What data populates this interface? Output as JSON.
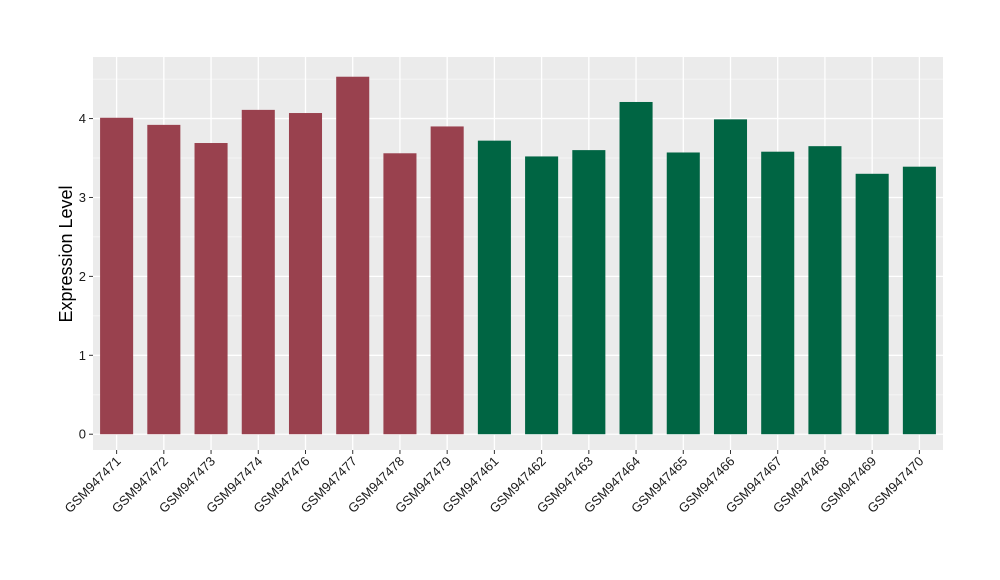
{
  "chart_data": {
    "type": "bar",
    "title": "",
    "xlabel": "",
    "ylabel": "Expression Level",
    "ylim": [
      -0.2,
      4.78
    ],
    "yticks": [
      0,
      1,
      2,
      3,
      4
    ],
    "grid": true,
    "legend": "none",
    "categories": [
      "GSM947471",
      "GSM947472",
      "GSM947473",
      "GSM947474",
      "GSM947476",
      "GSM947477",
      "GSM947478",
      "GSM947479",
      "GSM947461",
      "GSM947462",
      "GSM947463",
      "GSM947464",
      "GSM947465",
      "GSM947466",
      "GSM947467",
      "GSM947468",
      "GSM947469",
      "GSM947470"
    ],
    "values": [
      4.01,
      3.92,
      3.69,
      4.11,
      4.07,
      4.53,
      3.56,
      3.9,
      3.72,
      3.52,
      3.6,
      4.21,
      3.57,
      3.99,
      3.58,
      3.65,
      3.3,
      3.39
    ],
    "groups": [
      0,
      0,
      0,
      0,
      0,
      0,
      0,
      0,
      1,
      1,
      1,
      1,
      1,
      1,
      1,
      1,
      1,
      1
    ],
    "colors": {
      "group_colors": [
        "#99414e",
        "#006543"
      ],
      "panel_background": "#ebebeb",
      "grid_major": "#ffffff",
      "grid_minor": "#f5f5f5"
    }
  }
}
